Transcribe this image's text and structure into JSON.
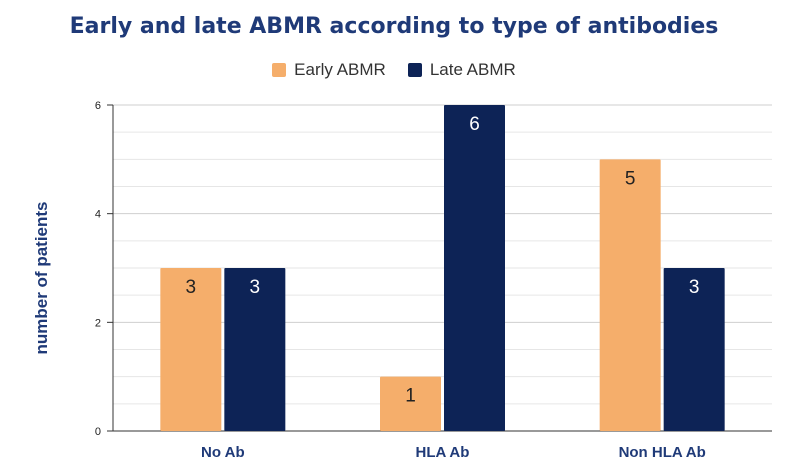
{
  "chart_data": {
    "type": "bar",
    "title": "Early and late ABMR according to type of antibodies",
    "xlabel": "",
    "ylabel": "number of patients",
    "categories": [
      "No Ab",
      "HLA Ab",
      "Non HLA Ab"
    ],
    "series": [
      {
        "name": "Early ABMR",
        "values": [
          3,
          1,
          5
        ],
        "color": "#f5ae6b"
      },
      {
        "name": "Late ABMR",
        "values": [
          3,
          6,
          3
        ],
        "color": "#0d2356"
      }
    ],
    "ylim": [
      0,
      6
    ],
    "yticks": [
      0,
      2,
      4,
      6
    ],
    "grid": true,
    "legend": "top-center",
    "data_labels": true
  }
}
